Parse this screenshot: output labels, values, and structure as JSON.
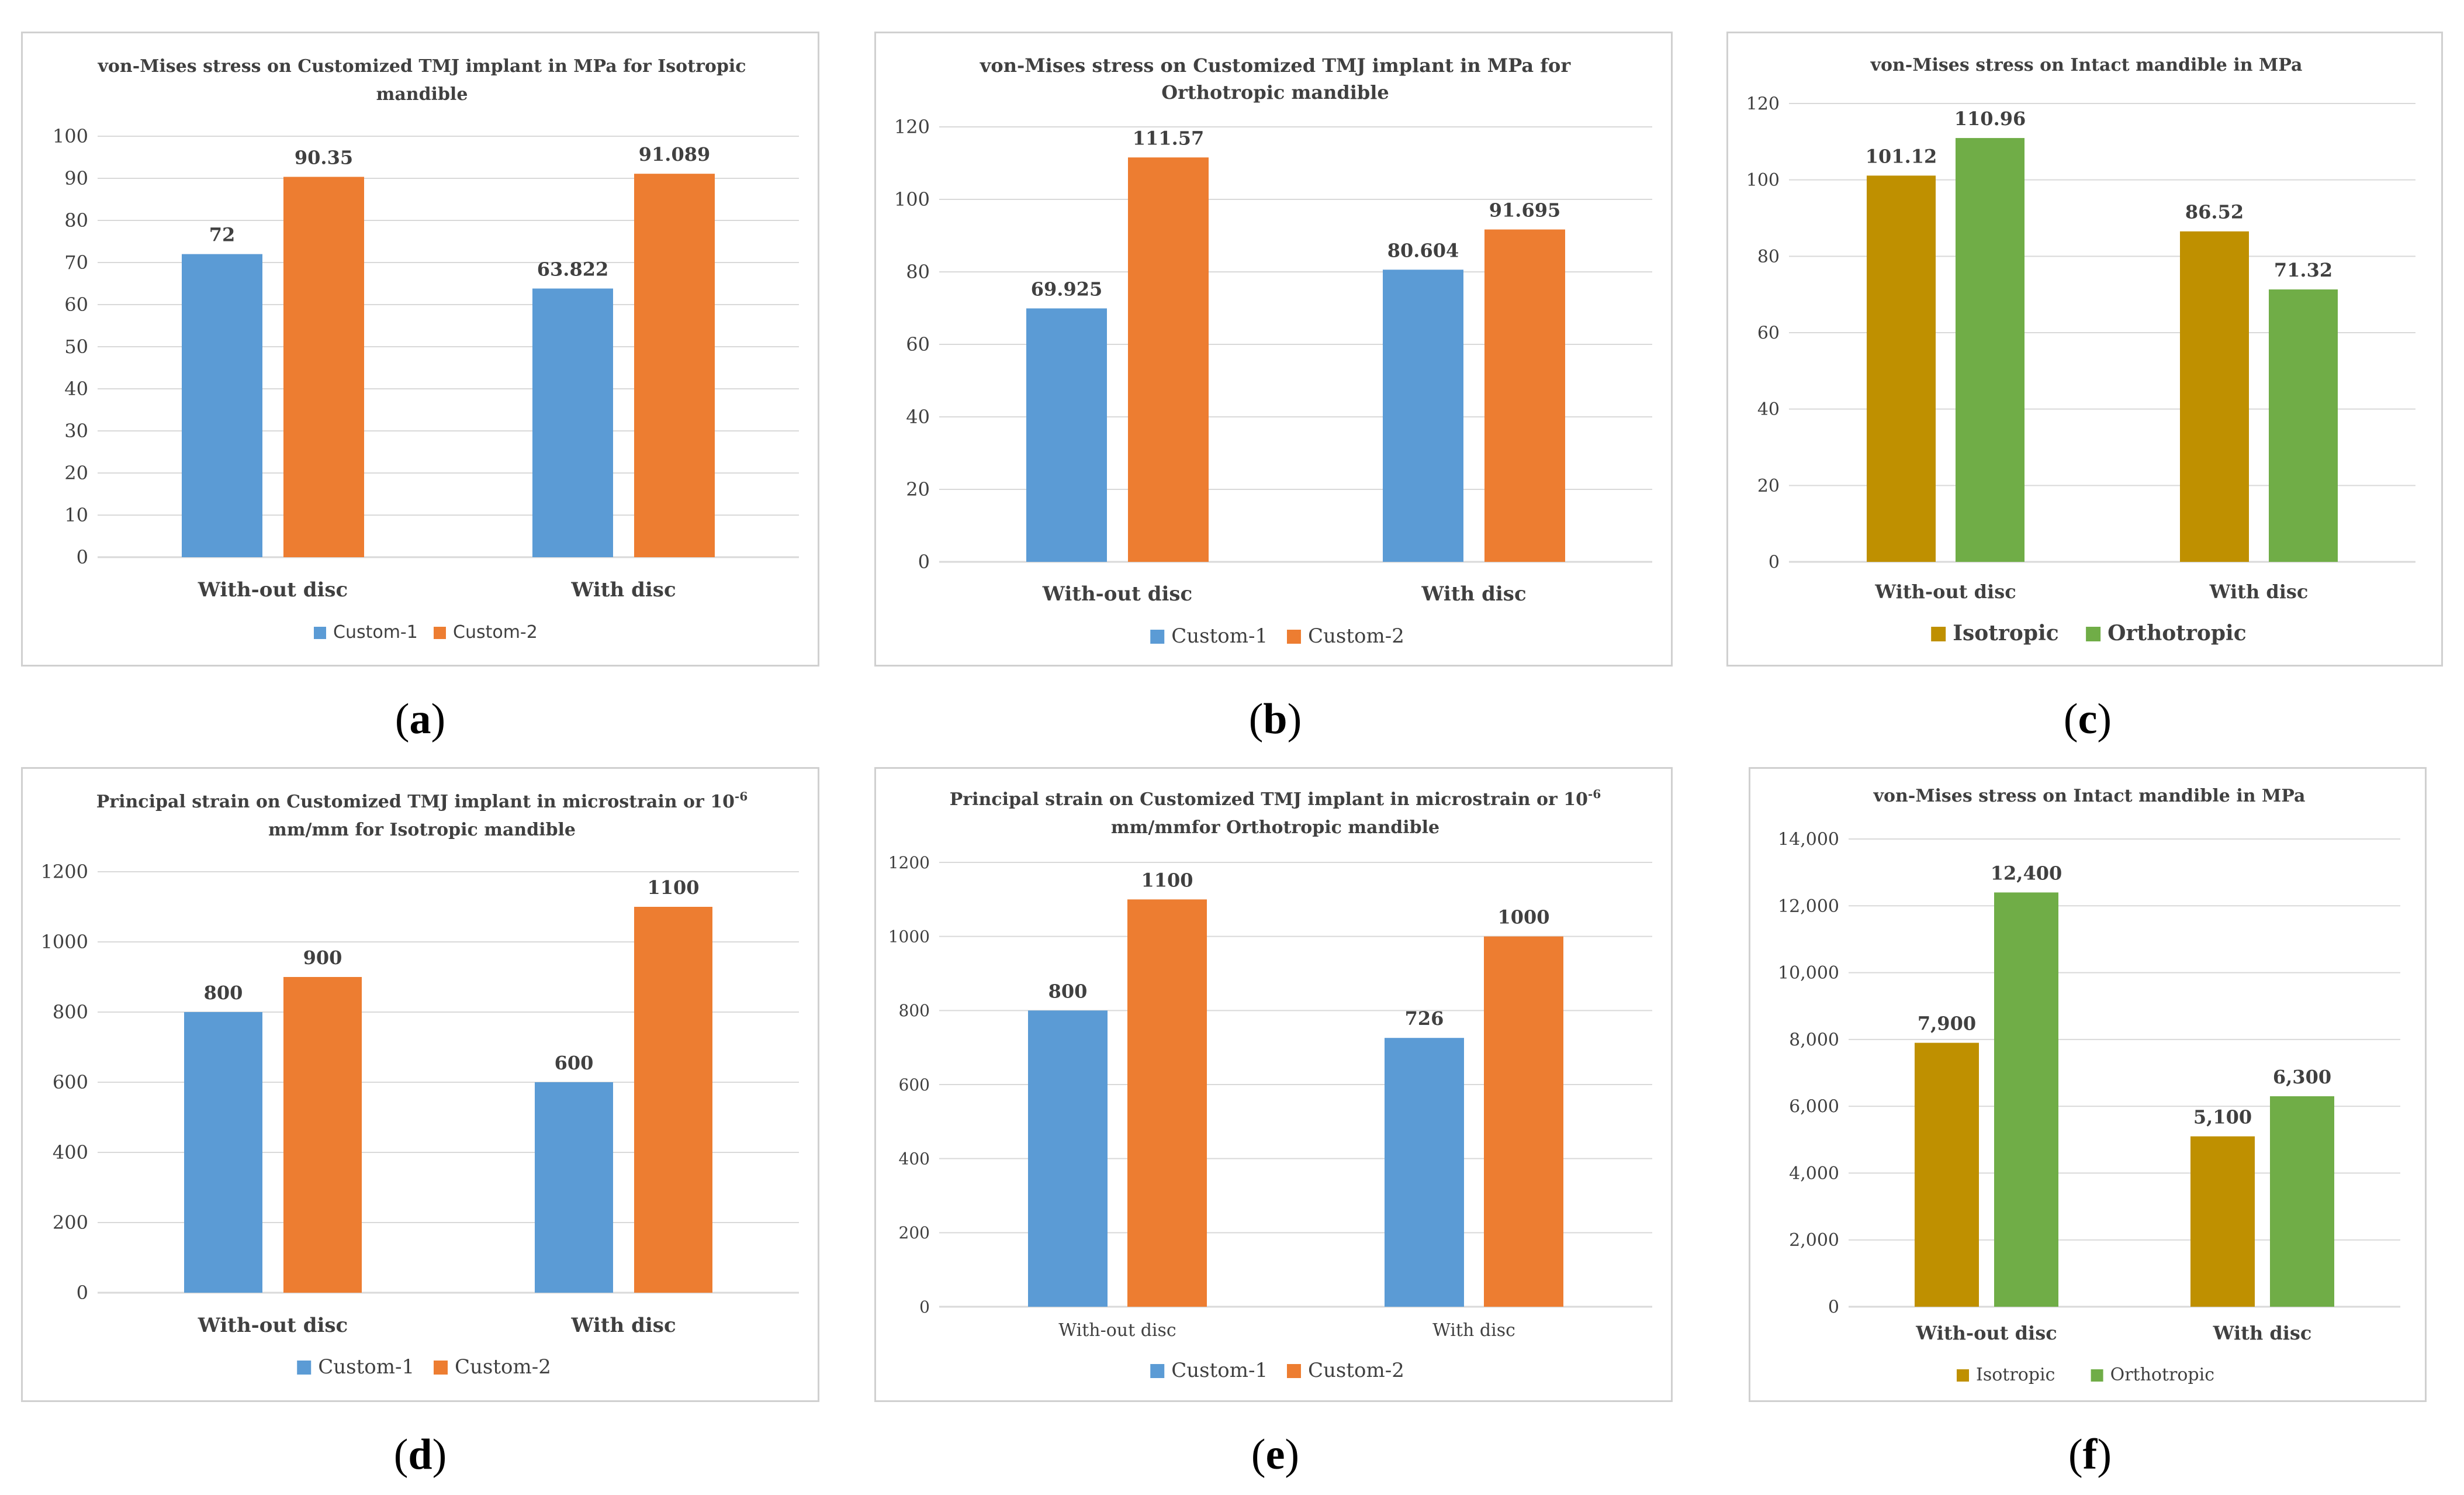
{
  "colors": {
    "custom1": "#5b9bd5",
    "custom2": "#ed7d31",
    "isotropic": "#bf9000",
    "orthotropic": "#70ad47",
    "grid": "#d9d9d9",
    "text": "#404040"
  },
  "captions": [
    "a",
    "b",
    "c",
    "d",
    "e",
    "f"
  ],
  "chart_data": [
    {
      "type": "bar",
      "title": "von-Mises stress on Customized TMJ implant in MPa for Isotropic mandible",
      "title_lines": [
        "von-Mises stress on Customized TMJ implant in MPa for Isotropic",
        "mandible"
      ],
      "categories": [
        "With-out disc",
        "With disc"
      ],
      "ylim": [
        0,
        100
      ],
      "yticks": [
        0,
        10,
        20,
        30,
        40,
        50,
        60,
        70,
        80,
        90,
        100
      ],
      "ytick_labels": [
        "0",
        "10",
        "20",
        "30",
        "40",
        "50",
        "60",
        "70",
        "80",
        "90",
        "100"
      ],
      "series": [
        {
          "name": "Custom-1",
          "color_key": "custom1",
          "values": [
            72,
            63.822
          ],
          "labels": [
            "72",
            "63.822"
          ]
        },
        {
          "name": "Custom-2",
          "color_key": "custom2",
          "values": [
            90.35,
            91.089
          ],
          "labels": [
            "90.35",
            "91.089"
          ]
        }
      ]
    },
    {
      "type": "bar",
      "title": "von-Mises stress on Customized TMJ implant in MPa for Orthotropic mandible",
      "title_lines": [
        "von-Mises stress on Customized TMJ implant in MPa for",
        "Orthotropic mandible"
      ],
      "categories": [
        "With-out disc",
        "With disc"
      ],
      "ylim": [
        0,
        120
      ],
      "yticks": [
        0,
        20,
        40,
        60,
        80,
        100,
        120
      ],
      "ytick_labels": [
        "0",
        "20",
        "40",
        "60",
        "80",
        "100",
        "120"
      ],
      "series": [
        {
          "name": "Custom-1",
          "color_key": "custom1",
          "values": [
            69.925,
            80.604
          ],
          "labels": [
            "69.925",
            "80.604"
          ]
        },
        {
          "name": "Custom-2",
          "color_key": "custom2",
          "values": [
            111.57,
            91.695
          ],
          "labels": [
            "111.57",
            "91.695"
          ]
        }
      ]
    },
    {
      "type": "bar",
      "title": "von-Mises stress on Intact mandible in MPa",
      "title_lines": [
        "von-Mises stress on Intact mandible in MPa"
      ],
      "categories": [
        "With-out disc",
        "With disc"
      ],
      "ylim": [
        0,
        120
      ],
      "yticks": [
        0,
        20,
        40,
        60,
        80,
        100,
        120
      ],
      "ytick_labels": [
        "0",
        "20",
        "40",
        "60",
        "80",
        "100",
        "120"
      ],
      "series": [
        {
          "name": "Isotropic",
          "color_key": "isotropic",
          "values": [
            101.12,
            86.52
          ],
          "labels": [
            "101.12",
            "86.52"
          ]
        },
        {
          "name": "Orthotropic",
          "color_key": "orthotropic",
          "values": [
            110.96,
            71.32
          ],
          "labels": [
            "110.96",
            "71.32"
          ]
        }
      ]
    },
    {
      "type": "bar",
      "title": "Principal strain on Customized TMJ implant in microstrain or 10-6 mm/mm for Isotropic mandible",
      "title_lines": [
        "Principal strain on Customized TMJ implant in microstrain or 10",
        "mm/mm for Isotropic mandible"
      ],
      "title_sup": "-6",
      "categories": [
        "With-out disc",
        "With disc"
      ],
      "ylim": [
        0,
        1200
      ],
      "yticks": [
        0,
        200,
        400,
        600,
        800,
        1000,
        1200
      ],
      "ytick_labels": [
        "0",
        "200",
        "400",
        "600",
        "800",
        "1000",
        "1200"
      ],
      "series": [
        {
          "name": "Custom-1",
          "color_key": "custom1",
          "values": [
            800,
            600
          ],
          "labels": [
            "800",
            "600"
          ]
        },
        {
          "name": "Custom-2",
          "color_key": "custom2",
          "values": [
            900,
            1100
          ],
          "labels": [
            "900",
            "1100"
          ]
        }
      ]
    },
    {
      "type": "bar",
      "title": "Principal strain on Customized TMJ implant in microstrain or 10-6 mm/mmfor Orthotropic mandible",
      "title_lines": [
        "Principal strain on Customized TMJ implant in microstrain or 10",
        "mm/mmfor Orthotropic mandible"
      ],
      "title_sup": "-6",
      "categories": [
        "With-out disc",
        "With disc"
      ],
      "ylim": [
        0,
        1200
      ],
      "yticks": [
        0,
        200,
        400,
        600,
        800,
        1000,
        1200
      ],
      "ytick_labels": [
        "0",
        "200",
        "400",
        "600",
        "800",
        "1000",
        "1200"
      ],
      "series": [
        {
          "name": "Custom-1",
          "color_key": "custom1",
          "values": [
            800,
            726
          ],
          "labels": [
            "800",
            "726"
          ]
        },
        {
          "name": "Custom-2",
          "color_key": "custom2",
          "values": [
            1100,
            1000
          ],
          "labels": [
            "1100",
            "1000"
          ]
        }
      ]
    },
    {
      "type": "bar",
      "title": "von-Mises stress on Intact mandible in MPa",
      "title_lines": [
        "von-Mises stress on Intact mandible in MPa"
      ],
      "categories": [
        "With-out disc",
        "With disc"
      ],
      "ylim": [
        0,
        14000
      ],
      "yticks": [
        0,
        2000,
        4000,
        6000,
        8000,
        10000,
        12000,
        14000
      ],
      "ytick_labels": [
        "0",
        "2,000",
        "4,000",
        "6,000",
        "8,000",
        "10,000",
        "12,000",
        "14,000"
      ],
      "series": [
        {
          "name": "Isotropic",
          "color_key": "isotropic",
          "values": [
            7900,
            5100
          ],
          "labels": [
            "7,900",
            "5,100"
          ]
        },
        {
          "name": "Orthotropic",
          "color_key": "orthotropic",
          "values": [
            12400,
            6300
          ],
          "labels": [
            "12,400",
            "6,300"
          ]
        }
      ]
    }
  ]
}
